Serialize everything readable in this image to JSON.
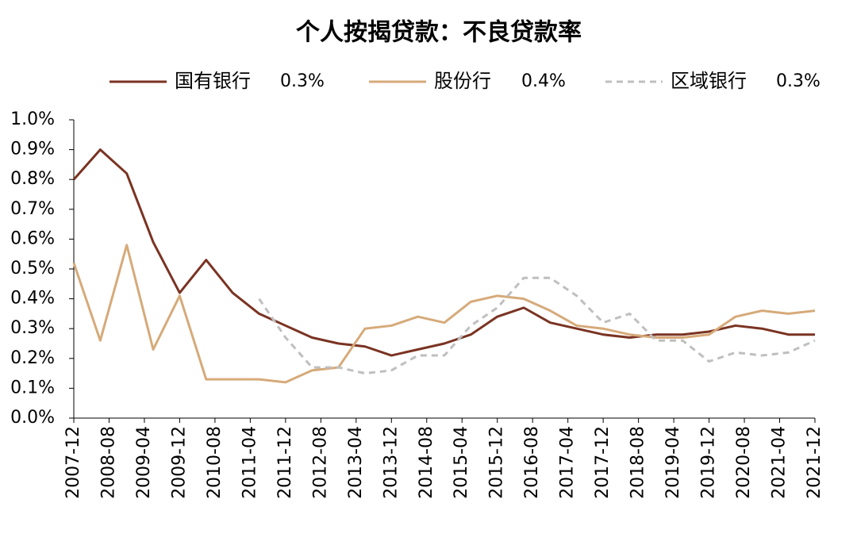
{
  "chart_data": {
    "type": "line",
    "title": "个人按揭贷款：不良贷款率",
    "x": [
      0,
      6,
      12,
      18,
      24,
      30,
      36,
      42,
      48,
      54,
      60,
      66,
      72,
      78,
      84,
      90,
      96,
      102,
      108,
      114,
      120,
      126,
      132,
      138,
      144,
      150,
      156,
      162,
      168
    ],
    "xlim": [
      0,
      168
    ],
    "xticks": [
      {
        "value": 0,
        "label": "2007-12"
      },
      {
        "value": 8,
        "label": "2008-08"
      },
      {
        "value": 16,
        "label": "2009-04"
      },
      {
        "value": 24,
        "label": "2009-12"
      },
      {
        "value": 32,
        "label": "2010-08"
      },
      {
        "value": 40,
        "label": "2011-04"
      },
      {
        "value": 48,
        "label": "2011-12"
      },
      {
        "value": 56,
        "label": "2012-08"
      },
      {
        "value": 64,
        "label": "2013-04"
      },
      {
        "value": 72,
        "label": "2013-12"
      },
      {
        "value": 80,
        "label": "2014-08"
      },
      {
        "value": 88,
        "label": "2015-04"
      },
      {
        "value": 96,
        "label": "2015-12"
      },
      {
        "value": 104,
        "label": "2016-08"
      },
      {
        "value": 112,
        "label": "2017-04"
      },
      {
        "value": 120,
        "label": "2017-12"
      },
      {
        "value": 128,
        "label": "2018-08"
      },
      {
        "value": 136,
        "label": "2019-04"
      },
      {
        "value": 144,
        "label": "2019-12"
      },
      {
        "value": 152,
        "label": "2020-08"
      },
      {
        "value": 160,
        "label": "2021-04"
      },
      {
        "value": 168,
        "label": "2021-12"
      }
    ],
    "ylim": [
      0,
      1.0
    ],
    "yticks": [
      {
        "value": 0,
        "label": "0.0%"
      },
      {
        "value": 0.1,
        "label": "0.1%"
      },
      {
        "value": 0.2,
        "label": "0.2%"
      },
      {
        "value": 0.3,
        "label": "0.3%"
      },
      {
        "value": 0.4,
        "label": "0.4%"
      },
      {
        "value": 0.5,
        "label": "0.5%"
      },
      {
        "value": 0.6,
        "label": "0.6%"
      },
      {
        "value": 0.7,
        "label": "0.7%"
      },
      {
        "value": 0.8,
        "label": "0.8%"
      },
      {
        "value": 0.9,
        "label": "0.9%"
      },
      {
        "value": 1.0,
        "label": "1.0%"
      }
    ],
    "series": [
      {
        "name": "国有银行",
        "legend_label": "0.3%",
        "color": "#7a3322",
        "dash": false,
        "values": [
          0.8,
          0.9,
          0.82,
          0.59,
          0.42,
          0.53,
          0.42,
          0.35,
          0.31,
          0.27,
          0.25,
          0.24,
          0.21,
          0.23,
          0.25,
          0.28,
          0.34,
          0.37,
          0.32,
          0.3,
          0.28,
          0.27,
          0.28,
          0.28,
          0.29,
          0.31,
          0.3,
          0.28,
          0.28
        ]
      },
      {
        "name": "股份行",
        "legend_label": "0.4%",
        "color": "#d6aa7a",
        "dash": false,
        "values": [
          0.52,
          0.26,
          0.58,
          0.23,
          0.41,
          0.13,
          0.13,
          0.13,
          0.12,
          0.16,
          0.17,
          0.3,
          0.31,
          0.34,
          0.32,
          0.39,
          0.41,
          0.4,
          0.36,
          0.31,
          0.3,
          0.28,
          0.27,
          0.27,
          0.28,
          0.34,
          0.36,
          0.35,
          0.36
        ]
      },
      {
        "name": "区域银行",
        "legend_label": "0.3%",
        "color": "#bfbfbf",
        "dash": true,
        "values": [
          null,
          null,
          null,
          null,
          null,
          null,
          null,
          0.4,
          0.27,
          0.17,
          0.17,
          0.15,
          0.16,
          0.21,
          0.21,
          0.31,
          0.37,
          0.47,
          0.47,
          0.41,
          0.32,
          0.35,
          0.26,
          0.26,
          0.19,
          0.22,
          0.21,
          0.22,
          0.26
        ]
      }
    ]
  }
}
